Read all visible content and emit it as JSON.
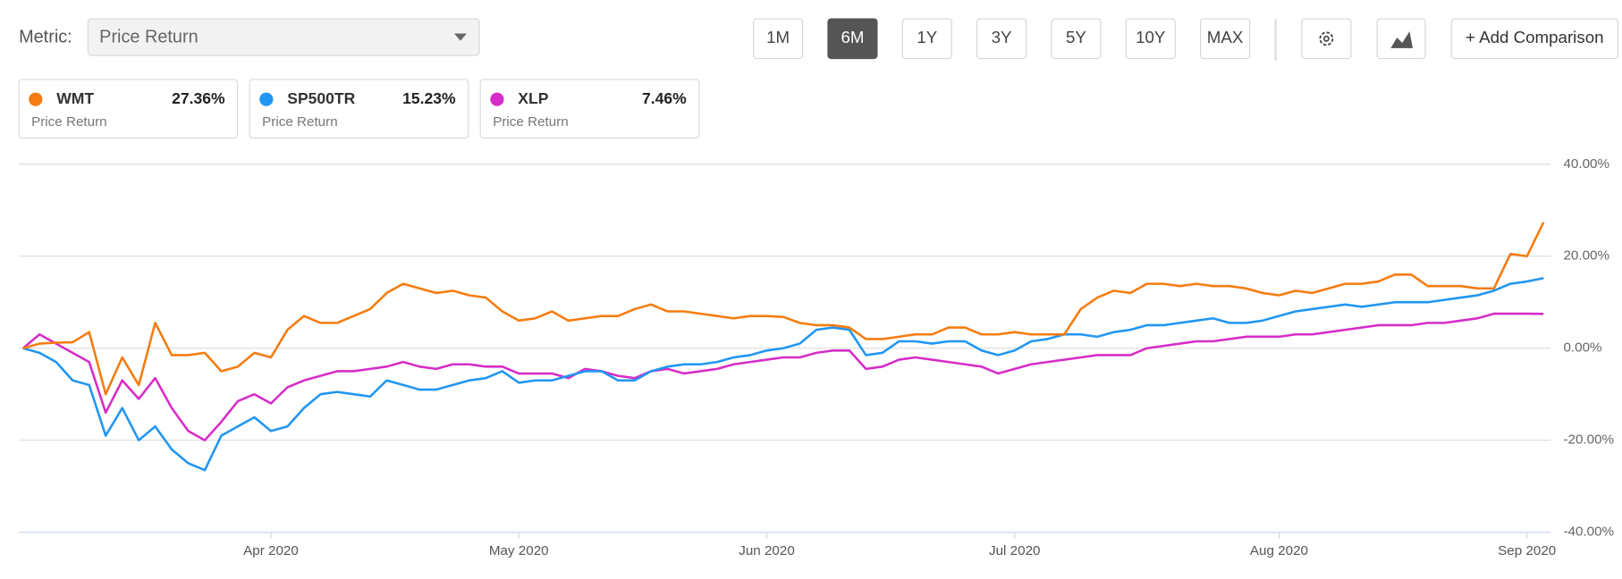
{
  "toolbar": {
    "metric_label": "Metric:",
    "metric_value": "Price Return",
    "ranges": [
      "1M",
      "6M",
      "1Y",
      "3Y",
      "5Y",
      "10Y",
      "MAX"
    ],
    "active_range": "6M",
    "add_comparison": "+ Add Comparison"
  },
  "chart_data": {
    "type": "line",
    "categories": [
      null,
      null,
      null,
      null,
      null,
      null,
      null,
      null,
      null,
      null,
      null,
      null,
      null,
      null,
      null,
      "Apr 2020",
      null,
      null,
      null,
      null,
      null,
      null,
      null,
      null,
      null,
      null,
      null,
      null,
      null,
      null,
      "May 2020",
      null,
      null,
      null,
      null,
      null,
      null,
      null,
      null,
      null,
      null,
      null,
      null,
      null,
      null,
      "Jun 2020",
      null,
      null,
      null,
      null,
      null,
      null,
      null,
      null,
      null,
      null,
      null,
      null,
      null,
      null,
      "Jul 2020",
      null,
      null,
      null,
      null,
      null,
      null,
      null,
      null,
      null,
      null,
      null,
      null,
      null,
      null,
      null,
      "Aug 2020",
      null,
      null,
      null,
      null,
      null,
      null,
      null,
      null,
      null,
      null,
      null,
      null,
      null,
      null,
      "Sep 2020",
      null
    ],
    "series": [
      {
        "name": "WMT",
        "color": "#f57c10",
        "metric": "Price Return",
        "return": {
          "value": 27.36,
          "label": "27.36%"
        },
        "values": [
          0,
          1,
          1.2,
          1.3,
          3.5,
          -10,
          -2,
          -8,
          5.5,
          -1.5,
          -1.5,
          -1,
          -5,
          -4,
          -1,
          -2,
          4,
          7,
          5.5,
          5.5,
          7,
          8.5,
          12,
          14,
          13,
          12,
          12.5,
          11.5,
          11,
          8,
          6,
          6.5,
          8,
          6,
          6.5,
          7,
          7,
          8.5,
          9.5,
          8,
          8,
          7.5,
          7,
          6.5,
          7,
          7,
          6.8,
          5.5,
          5,
          5,
          4.5,
          2,
          2,
          2.5,
          3,
          3,
          4.5,
          4.5,
          3,
          3,
          3.5,
          3,
          3,
          3,
          8.5,
          11,
          12.5,
          12,
          14,
          14,
          13.5,
          14,
          13.5,
          13.5,
          13,
          12,
          11.5,
          12.5,
          12,
          13,
          14,
          14,
          14.5,
          16,
          16,
          13.5,
          13.5,
          13.5,
          13,
          13,
          20.5,
          20,
          27.36
        ]
      },
      {
        "name": "SP500TR",
        "color": "#2196f3",
        "metric": "Price Return",
        "return": {
          "value": 15.23,
          "label": "15.23%"
        },
        "values": [
          0,
          -1,
          -3,
          -7,
          -8,
          -19,
          -13,
          -20,
          -17,
          -22,
          -25,
          -26.5,
          -19,
          -17,
          -15,
          -18,
          -17,
          -13,
          -10,
          -9.5,
          -10,
          -10.5,
          -7,
          -8,
          -9,
          -9,
          -8,
          -7,
          -6.5,
          -5,
          -7.5,
          -7,
          -7,
          -6,
          -5,
          -5,
          -7,
          -7,
          -5,
          -4,
          -3.5,
          -3.5,
          -3,
          -2,
          -1.5,
          -0.5,
          0,
          1,
          4,
          4.5,
          4,
          -1.5,
          -1,
          1.5,
          1.5,
          1,
          1.5,
          1.5,
          -0.5,
          -1.5,
          -0.5,
          1.5,
          2,
          3,
          3,
          2.5,
          3.5,
          4,
          5,
          5,
          5.5,
          6,
          6.5,
          5.5,
          5.5,
          6,
          7,
          8,
          8.5,
          9,
          9.5,
          9,
          9.5,
          10,
          10,
          10,
          10.5,
          11,
          11.5,
          12.5,
          14,
          14.5,
          15.23
        ]
      },
      {
        "name": "XLP",
        "color": "#d62dc8",
        "metric": "Price Return",
        "return": {
          "value": 7.46,
          "label": "7.46%"
        },
        "values": [
          0,
          3,
          1,
          -1,
          -3,
          -14,
          -7,
          -11,
          -6.5,
          -13,
          -18,
          -20,
          -16,
          -11.5,
          -10,
          -12,
          -8.5,
          -7,
          -6,
          -5,
          -5,
          -4.5,
          -4,
          -3,
          -4,
          -4.5,
          -3.5,
          -3.5,
          -4,
          -4,
          -5.5,
          -5.5,
          -5.5,
          -6.5,
          -4.5,
          -5,
          -6,
          -6.5,
          -5,
          -4.5,
          -5.5,
          -5,
          -4.5,
          -3.5,
          -3,
          -2.5,
          -2,
          -2,
          -1,
          -0.5,
          -0.5,
          -4.5,
          -4,
          -2.5,
          -2,
          -2.5,
          -3,
          -3.5,
          -4,
          -5.5,
          -4.5,
          -3.5,
          -3,
          -2.5,
          -2,
          -1.5,
          -1.5,
          -1.5,
          0,
          0.5,
          1,
          1.5,
          1.5,
          2,
          2.5,
          2.5,
          2.5,
          3,
          3,
          3.5,
          4,
          4.5,
          5,
          5,
          5,
          5.5,
          5.5,
          6,
          6.5,
          7.5,
          7.5,
          7.5,
          7.46
        ]
      }
    ],
    "ylim": [
      -40,
      40
    ],
    "yticks": [
      {
        "value": -40,
        "label": "-40.00%"
      },
      {
        "value": -20,
        "label": "-20.00%"
      },
      {
        "value": 0,
        "label": "0.00%"
      },
      {
        "value": 20,
        "label": "20.00%"
      },
      {
        "value": 40,
        "label": "40.00%"
      }
    ],
    "grid": true
  }
}
